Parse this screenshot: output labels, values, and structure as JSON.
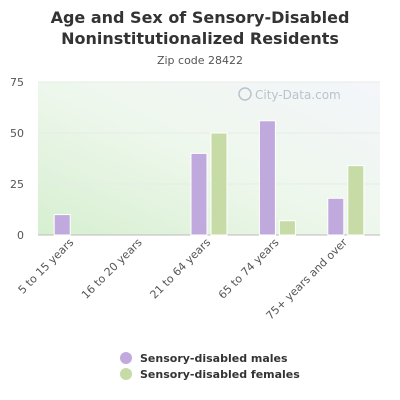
{
  "chart_data": {
    "type": "bar",
    "title": "Age and Sex of Sensory-Disabled Noninstitutionalized Residents",
    "subtitle": "Zip code 28422",
    "categories": [
      "5 to 15 years",
      "16 to 20 years",
      "21 to 64 years",
      "65 to 74 years",
      "75+ years and over"
    ],
    "series": [
      {
        "name": "Sensory-disabled males",
        "color": "#c0a9dc",
        "values": [
          10,
          0,
          40,
          56,
          18
        ]
      },
      {
        "name": "Sensory-disabled females",
        "color": "#c6dba5",
        "values": [
          0,
          0,
          50,
          7,
          34
        ]
      }
    ],
    "y_ticks": [
      0,
      25,
      50,
      75
    ],
    "ylim": [
      0,
      75
    ],
    "grid": true,
    "legend_position": "bottom",
    "watermark": "City-Data.com"
  }
}
